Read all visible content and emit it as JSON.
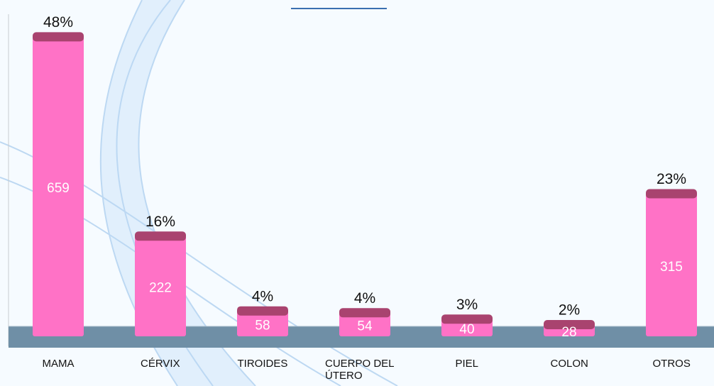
{
  "chart_data": {
    "type": "bar",
    "categories": [
      "MAMA",
      "CÉRVIX",
      "TIROIDES",
      "CUERPO DEL ÚTERO",
      "PIEL",
      "COLON",
      "OTROS"
    ],
    "values": [
      659,
      222,
      58,
      54,
      40,
      28,
      315
    ],
    "percent_labels": [
      "48%",
      "16%",
      "4%",
      "4%",
      "3%",
      "2%",
      "23%"
    ],
    "color": "#ff72c6",
    "ylim": [
      0,
      700
    ]
  }
}
